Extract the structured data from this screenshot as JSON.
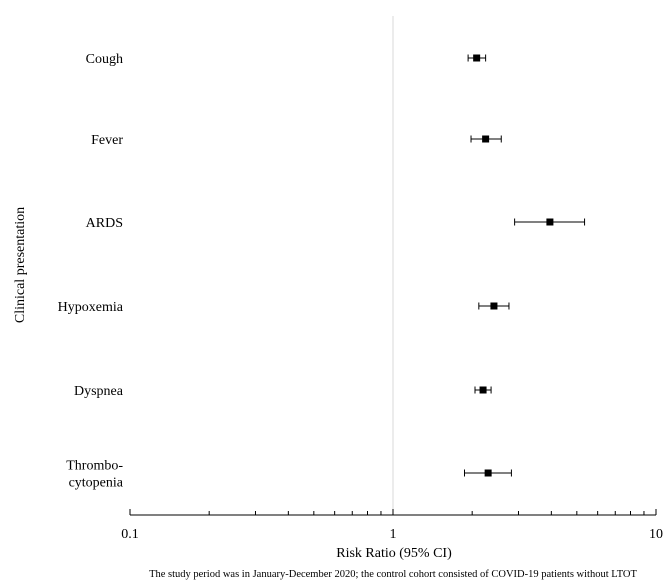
{
  "chart_data": {
    "type": "scatter",
    "subtype": "forest-plot",
    "title": "",
    "xlabel": "Risk Ratio (95% CI)",
    "ylabel": "Clinical presentation",
    "xscale": "log",
    "xlim": [
      0.1,
      10
    ],
    "x_ticks": [
      0.1,
      1,
      10
    ],
    "x_tick_labels": [
      "0.1",
      "1",
      "10"
    ],
    "reference_line": 1,
    "grid": false,
    "legend": "none",
    "categories": [
      "Cough",
      "Fever",
      "ARDS",
      "Hypoxemia",
      "Dyspnea",
      "Thrombo-\ncytopenia"
    ],
    "series": [
      {
        "points": [
          {
            "label": "Cough",
            "rr": 2.08,
            "lower": 1.93,
            "upper": 2.25
          },
          {
            "label": "Fever",
            "rr": 2.25,
            "lower": 1.98,
            "upper": 2.58
          },
          {
            "label": "ARDS",
            "rr": 3.95,
            "lower": 2.9,
            "upper": 5.35
          },
          {
            "label": "Hypoxemia",
            "rr": 2.42,
            "lower": 2.12,
            "upper": 2.76
          },
          {
            "label": "Dyspnea",
            "rr": 2.2,
            "lower": 2.05,
            "upper": 2.36
          },
          {
            "label": "Thrombo-\ncytopenia",
            "rr": 2.3,
            "lower": 1.87,
            "upper": 2.82
          }
        ]
      }
    ],
    "colors": {
      "marker": "#000000",
      "axis": "#000000",
      "reference_line": "#d9d9d9"
    },
    "footnote": "The study period was in January-December 2020; the control cohort consisted of COVID-19 patients without LTOT"
  }
}
